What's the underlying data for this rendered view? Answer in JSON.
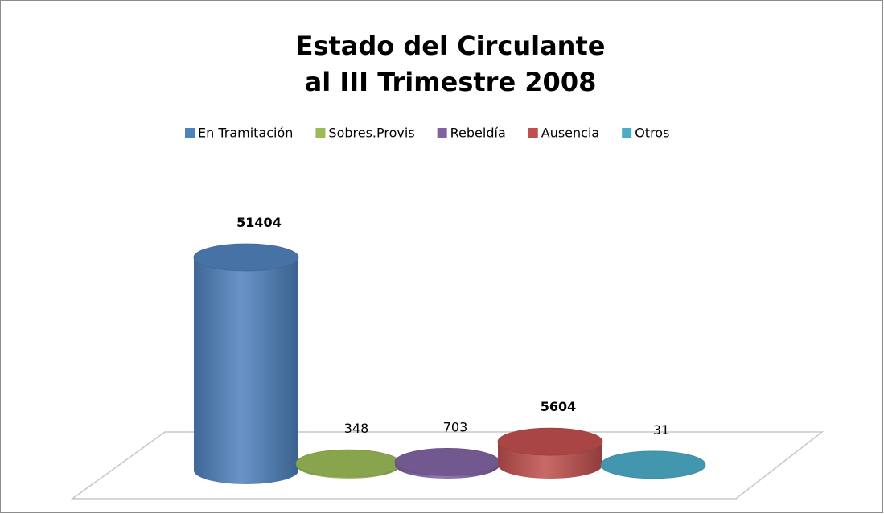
{
  "chart_data": {
    "type": "cylinder",
    "title": [
      "Estado del Circulante",
      "al III Trimestre  2008"
    ],
    "categories": [
      null
    ],
    "series": [
      {
        "name": "En Tramitación",
        "color": "#4f81bd",
        "values": [
          51404
        ],
        "bold": true
      },
      {
        "name": "Sobres.Provis",
        "color": "#9bbb59",
        "values": [
          348
        ],
        "bold": false
      },
      {
        "name": "Rebeldía",
        "color": "#8064a2",
        "values": [
          703
        ],
        "bold": false
      },
      {
        "name": "Ausencia",
        "color": "#c0504d",
        "values": [
          5604
        ],
        "bold": true
      },
      {
        "name": "Otros",
        "color": "#4bacc6",
        "values": [
          31
        ],
        "bold": false
      }
    ],
    "legend": "top"
  }
}
